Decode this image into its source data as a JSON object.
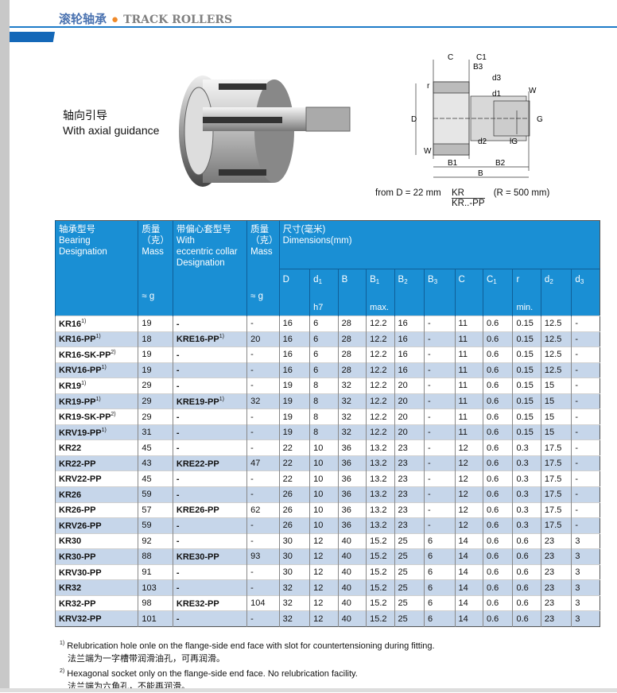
{
  "header": {
    "title_cn": "滚轮轴承",
    "title_en": "TRACK ROLLERS"
  },
  "guidance": {
    "cn": "轴向引导",
    "en": "With axial guidance"
  },
  "drawing": {
    "labels": {
      "C": "C",
      "C1": "C1",
      "B3": "B3",
      "d3": "d3",
      "d1": "d1",
      "r": "r",
      "W": "W",
      "D": "D",
      "G": "G",
      "d2": "d2",
      "lG": "lG",
      "B1": "B1",
      "B2": "B2",
      "B": "B"
    },
    "note_prefix": "from D = 22 mm",
    "note_num": "KR",
    "note_den": "KR..-PP",
    "note_suffix": "(R = 500 mm)"
  },
  "table": {
    "headers": {
      "bearing": {
        "cn": "轴承型号",
        "en1": "Bearing",
        "en2": "Designation"
      },
      "mass1": {
        "cn1": "质量",
        "cn2": "（克）",
        "en": "Mass",
        "unit": "≈ g"
      },
      "collar": {
        "cn": "带偏心套型号",
        "en1": "With",
        "en2": "eccentric collar",
        "en3": "Designation"
      },
      "mass2": {
        "cn1": "质量",
        "cn2": "（克）",
        "en": "Mass",
        "unit": "≈ g"
      },
      "dims": {
        "cn": "尺寸(毫米)",
        "en": "Dimensions(mm)"
      },
      "cols": [
        {
          "m": "D",
          "s": "",
          "lo": ""
        },
        {
          "m": "d",
          "s": "1",
          "lo": "h7"
        },
        {
          "m": "B",
          "s": "",
          "lo": ""
        },
        {
          "m": "B",
          "s": "1",
          "lo": "max."
        },
        {
          "m": "B",
          "s": "2",
          "lo": ""
        },
        {
          "m": "B",
          "s": "3",
          "lo": ""
        },
        {
          "m": "C",
          "s": "",
          "lo": ""
        },
        {
          "m": "C",
          "s": "1",
          "lo": ""
        },
        {
          "m": "r",
          "s": "",
          "lo": "min."
        },
        {
          "m": "d",
          "s": "2",
          "lo": ""
        },
        {
          "m": "d",
          "s": "3",
          "lo": ""
        }
      ]
    },
    "rows": [
      {
        "des": "KR16",
        "sup": "1)",
        "mass": "19",
        "ecc": "-",
        "esup": "",
        "emass": "-",
        "dims": [
          "16",
          "6",
          "28",
          "12.2",
          "16",
          "-",
          "11",
          "0.6",
          "0.15",
          "12.5",
          "-"
        ]
      },
      {
        "des": "KR16-PP",
        "sup": "1)",
        "mass": "18",
        "ecc": "KRE16-PP",
        "esup": "1)",
        "emass": "20",
        "dims": [
          "16",
          "6",
          "28",
          "12.2",
          "16",
          "-",
          "11",
          "0.6",
          "0.15",
          "12.5",
          "-"
        ]
      },
      {
        "des": "KR16-SK-PP",
        "sup": "2)",
        "mass": "19",
        "ecc": "-",
        "esup": "",
        "emass": "-",
        "dims": [
          "16",
          "6",
          "28",
          "12.2",
          "16",
          "-",
          "11",
          "0.6",
          "0.15",
          "12.5",
          "-"
        ]
      },
      {
        "des": "KRV16-PP",
        "sup": "1)",
        "mass": "19",
        "ecc": "-",
        "esup": "",
        "emass": "-",
        "dims": [
          "16",
          "6",
          "28",
          "12.2",
          "16",
          "-",
          "11",
          "0.6",
          "0.15",
          "12.5",
          "-"
        ]
      },
      {
        "des": "KR19",
        "sup": "1)",
        "mass": "29",
        "ecc": "-",
        "esup": "",
        "emass": "-",
        "dims": [
          "19",
          "8",
          "32",
          "12.2",
          "20",
          "-",
          "11",
          "0.6",
          "0.15",
          "15",
          "-"
        ]
      },
      {
        "des": "KR19-PP",
        "sup": "1)",
        "mass": "29",
        "ecc": "KRE19-PP",
        "esup": "1)",
        "emass": "32",
        "dims": [
          "19",
          "8",
          "32",
          "12.2",
          "20",
          "-",
          "11",
          "0.6",
          "0.15",
          "15",
          "-"
        ]
      },
      {
        "des": "KR19-SK-PP",
        "sup": "2)",
        "mass": "29",
        "ecc": "-",
        "esup": "",
        "emass": "-",
        "dims": [
          "19",
          "8",
          "32",
          "12.2",
          "20",
          "-",
          "11",
          "0.6",
          "0.15",
          "15",
          "-"
        ]
      },
      {
        "des": "KRV19-PP",
        "sup": "1)",
        "mass": "31",
        "ecc": "-",
        "esup": "",
        "emass": "-",
        "dims": [
          "19",
          "8",
          "32",
          "12.2",
          "20",
          "-",
          "11",
          "0.6",
          "0.15",
          "15",
          "-"
        ]
      },
      {
        "des": "KR22",
        "sup": "",
        "mass": "45",
        "ecc": "-",
        "esup": "",
        "emass": "-",
        "dims": [
          "22",
          "10",
          "36",
          "13.2",
          "23",
          "-",
          "12",
          "0.6",
          "0.3",
          "17.5",
          "-"
        ]
      },
      {
        "des": "KR22-PP",
        "sup": "",
        "mass": "43",
        "ecc": "KRE22-PP",
        "esup": "",
        "emass": "47",
        "dims": [
          "22",
          "10",
          "36",
          "13.2",
          "23",
          "-",
          "12",
          "0.6",
          "0.3",
          "17.5",
          "-"
        ]
      },
      {
        "des": "KRV22-PP",
        "sup": "",
        "mass": "45",
        "ecc": "-",
        "esup": "",
        "emass": "-",
        "dims": [
          "22",
          "10",
          "36",
          "13.2",
          "23",
          "-",
          "12",
          "0.6",
          "0.3",
          "17.5",
          "-"
        ]
      },
      {
        "des": "KR26",
        "sup": "",
        "mass": "59",
        "ecc": "-",
        "esup": "",
        "emass": "-",
        "dims": [
          "26",
          "10",
          "36",
          "13.2",
          "23",
          "-",
          "12",
          "0.6",
          "0.3",
          "17.5",
          "-"
        ]
      },
      {
        "des": "KR26-PP",
        "sup": "",
        "mass": "57",
        "ecc": "KRE26-PP",
        "esup": "",
        "emass": "62",
        "dims": [
          "26",
          "10",
          "36",
          "13.2",
          "23",
          "-",
          "12",
          "0.6",
          "0.3",
          "17.5",
          "-"
        ]
      },
      {
        "des": "KRV26-PP",
        "sup": "",
        "mass": "59",
        "ecc": "-",
        "esup": "",
        "emass": "-",
        "dims": [
          "26",
          "10",
          "36",
          "13.2",
          "23",
          "-",
          "12",
          "0.6",
          "0.3",
          "17.5",
          "-"
        ]
      },
      {
        "des": "KR30",
        "sup": "",
        "mass": "92",
        "ecc": "-",
        "esup": "",
        "emass": "-",
        "dims": [
          "30",
          "12",
          "40",
          "15.2",
          "25",
          "6",
          "14",
          "0.6",
          "0.6",
          "23",
          "3"
        ]
      },
      {
        "des": "KR30-PP",
        "sup": "",
        "mass": "88",
        "ecc": "KRE30-PP",
        "esup": "",
        "emass": "93",
        "dims": [
          "30",
          "12",
          "40",
          "15.2",
          "25",
          "6",
          "14",
          "0.6",
          "0.6",
          "23",
          "3"
        ]
      },
      {
        "des": "KRV30-PP",
        "sup": "",
        "mass": "91",
        "ecc": "-",
        "esup": "",
        "emass": "-",
        "dims": [
          "30",
          "12",
          "40",
          "15.2",
          "25",
          "6",
          "14",
          "0.6",
          "0.6",
          "23",
          "3"
        ]
      },
      {
        "des": "KR32",
        "sup": "",
        "mass": "103",
        "ecc": "-",
        "esup": "",
        "emass": "-",
        "dims": [
          "32",
          "12",
          "40",
          "15.2",
          "25",
          "6",
          "14",
          "0.6",
          "0.6",
          "23",
          "3"
        ]
      },
      {
        "des": "KR32-PP",
        "sup": "",
        "mass": "98",
        "ecc": "KRE32-PP",
        "esup": "",
        "emass": "104",
        "dims": [
          "32",
          "12",
          "40",
          "15.2",
          "25",
          "6",
          "14",
          "0.6",
          "0.6",
          "23",
          "3"
        ]
      },
      {
        "des": "KRV32-PP",
        "sup": "",
        "mass": "101",
        "ecc": "-",
        "esup": "",
        "emass": "-",
        "dims": [
          "32",
          "12",
          "40",
          "15.2",
          "25",
          "6",
          "14",
          "0.6",
          "0.6",
          "23",
          "3"
        ]
      }
    ]
  },
  "notes": [
    {
      "mark": "1)",
      "en": "Relubrication hole onle on the flange-side end face with slot for countertensioning during fitting.",
      "cn": "法兰端为一字槽带润滑油孔，可再润滑。"
    },
    {
      "mark": "2)",
      "en": "Hexagonal socket only on the flange-side end face. No relubrication facility.",
      "cn": "法兰端为六角孔，不能再润滑。"
    }
  ],
  "colors": {
    "accent": "#1a8fd4",
    "stripe": "#c6d6ea",
    "title": "#4a72b0",
    "dot": "#f08a2a"
  }
}
